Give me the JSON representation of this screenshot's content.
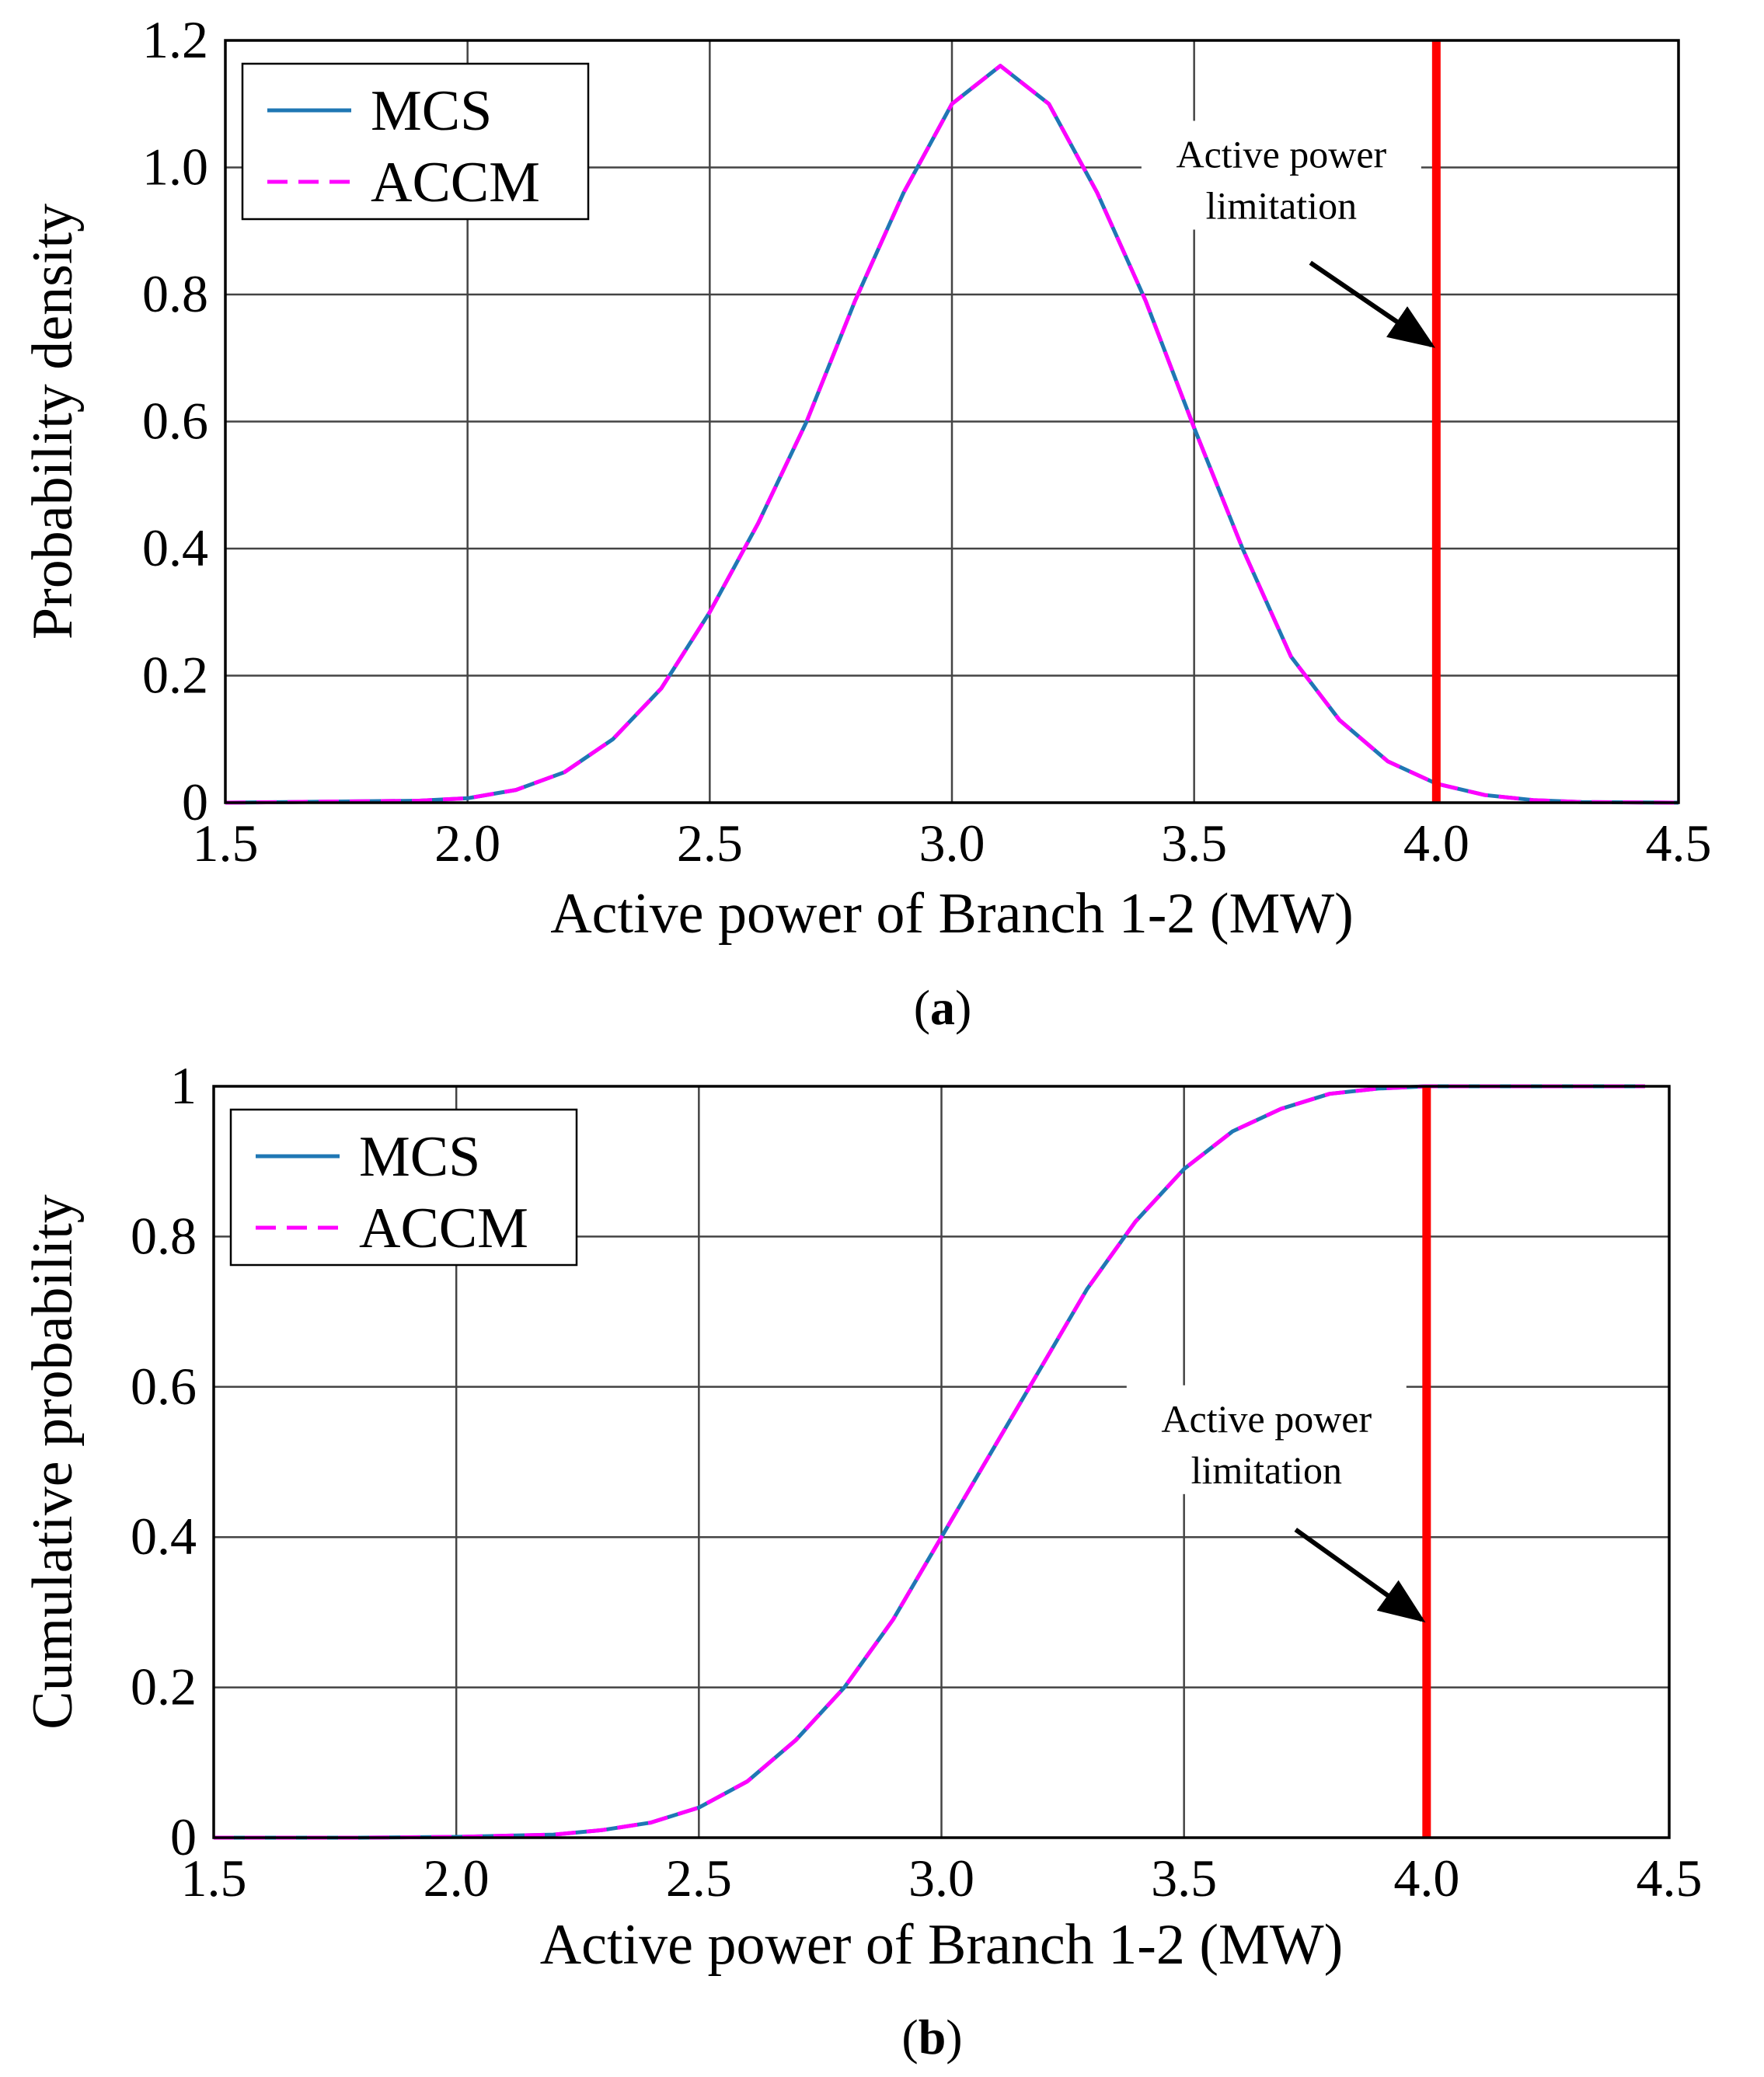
{
  "colors": {
    "mcs": "#1f77b4",
    "accm": "#ff00ff",
    "limit": "#ff0000",
    "grid": "#444444",
    "frame": "#000000"
  },
  "chart_data": [
    {
      "id": "a",
      "type": "line",
      "caption_open": "(",
      "caption_letter": "a",
      "caption_close": ")",
      "xlabel": "Active power of Branch 1-2 (MW)",
      "ylabel": "Probability density",
      "xlim": [
        1.5,
        4.5
      ],
      "ylim": [
        0,
        1.2
      ],
      "xticks": [
        1.5,
        2.0,
        2.5,
        3.0,
        3.5,
        4.0,
        4.5
      ],
      "xtick_labels": [
        "1.5",
        "2.0",
        "2.5",
        "3.0",
        "3.5",
        "4.0",
        "4.5"
      ],
      "yticks": [
        0,
        0.2,
        0.4,
        0.6,
        0.8,
        1.0,
        1.2
      ],
      "ytick_labels": [
        "0",
        "0.2",
        "0.4",
        "0.6",
        "0.8",
        "1.0",
        "1.2"
      ],
      "grid": true,
      "legend": {
        "position": "top-left",
        "entries": [
          "MCS",
          "ACCM"
        ]
      },
      "limit_x": 4.0,
      "annotation": {
        "line1": "Active power",
        "line2": "limitation",
        "label_at": [
          3.68,
          1.0
        ],
        "arrow_from": [
          3.74,
          0.85
        ],
        "arrow_to": [
          3.99,
          0.72
        ]
      },
      "series": [
        {
          "name": "MCS",
          "x": [
            1.5,
            1.9,
            2.0,
            2.1,
            2.2,
            2.3,
            2.4,
            2.5,
            2.6,
            2.7,
            2.8,
            2.9,
            3.0,
            3.1,
            3.2,
            3.3,
            3.4,
            3.5,
            3.6,
            3.7,
            3.8,
            3.9,
            4.0,
            4.1,
            4.2,
            4.3,
            4.5
          ],
          "y": [
            0,
            0.003,
            0.007,
            0.02,
            0.048,
            0.1,
            0.18,
            0.3,
            0.44,
            0.6,
            0.79,
            0.96,
            1.1,
            1.16,
            1.1,
            0.96,
            0.79,
            0.59,
            0.4,
            0.23,
            0.13,
            0.065,
            0.03,
            0.012,
            0.004,
            0.001,
            0
          ]
        },
        {
          "name": "ACCM",
          "x": [
            1.5,
            1.9,
            2.0,
            2.1,
            2.2,
            2.3,
            2.4,
            2.5,
            2.6,
            2.7,
            2.8,
            2.9,
            3.0,
            3.1,
            3.2,
            3.3,
            3.4,
            3.5,
            3.6,
            3.7,
            3.8,
            3.9,
            4.0,
            4.1,
            4.2,
            4.3,
            4.5
          ],
          "y": [
            0,
            0.003,
            0.007,
            0.02,
            0.048,
            0.1,
            0.18,
            0.3,
            0.44,
            0.6,
            0.79,
            0.96,
            1.1,
            1.16,
            1.1,
            0.96,
            0.79,
            0.59,
            0.4,
            0.23,
            0.13,
            0.065,
            0.03,
            0.012,
            0.004,
            0.001,
            0
          ]
        }
      ]
    },
    {
      "id": "b",
      "type": "line",
      "caption_open": "(",
      "caption_letter": "b",
      "caption_close": ")",
      "xlabel": "Active power of Branch 1-2 (MW)",
      "ylabel": "Cumulative probability",
      "xlim": [
        1.5,
        4.5
      ],
      "ylim": [
        0,
        1
      ],
      "xticks": [
        1.5,
        2.0,
        2.5,
        3.0,
        3.5,
        4.0,
        4.5
      ],
      "xtick_labels": [
        "1.5",
        "2.0",
        "2.5",
        "3.0",
        "3.5",
        "4.0",
        "4.5"
      ],
      "yticks": [
        0,
        0.2,
        0.4,
        0.6,
        0.8,
        1
      ],
      "ytick_labels": [
        "0",
        "0.2",
        "0.4",
        "0.6",
        "0.8",
        "1"
      ],
      "grid": true,
      "legend": {
        "position": "top-left",
        "entries": [
          "MCS",
          "ACCM"
        ]
      },
      "limit_x": 4.0,
      "annotation": {
        "line1": "Active power",
        "line2": "limitation",
        "label_at": [
          3.67,
          0.54
        ],
        "arrow_from": [
          3.73,
          0.41
        ],
        "arrow_to": [
          3.99,
          0.29
        ]
      },
      "series": [
        {
          "name": "MCS",
          "x": [
            1.5,
            1.8,
            2.0,
            2.2,
            2.3,
            2.4,
            2.5,
            2.6,
            2.7,
            2.8,
            2.9,
            3.0,
            3.1,
            3.2,
            3.3,
            3.4,
            3.5,
            3.6,
            3.7,
            3.8,
            3.9,
            4.0,
            4.2,
            4.45
          ],
          "y": [
            0,
            0,
            0.001,
            0.004,
            0.01,
            0.02,
            0.04,
            0.075,
            0.13,
            0.2,
            0.29,
            0.4,
            0.51,
            0.62,
            0.73,
            0.82,
            0.89,
            0.94,
            0.97,
            0.99,
            0.997,
            1.0,
            1.0,
            1.0
          ]
        },
        {
          "name": "ACCM",
          "x": [
            1.5,
            1.8,
            2.0,
            2.2,
            2.3,
            2.4,
            2.5,
            2.6,
            2.7,
            2.8,
            2.9,
            3.0,
            3.1,
            3.2,
            3.3,
            3.4,
            3.5,
            3.6,
            3.7,
            3.8,
            3.9,
            4.0,
            4.2,
            4.45
          ],
          "y": [
            0,
            0,
            0.001,
            0.004,
            0.01,
            0.02,
            0.04,
            0.075,
            0.13,
            0.2,
            0.29,
            0.4,
            0.51,
            0.62,
            0.73,
            0.82,
            0.89,
            0.94,
            0.97,
            0.99,
            0.997,
            1.0,
            1.0,
            1.0
          ]
        }
      ]
    }
  ]
}
